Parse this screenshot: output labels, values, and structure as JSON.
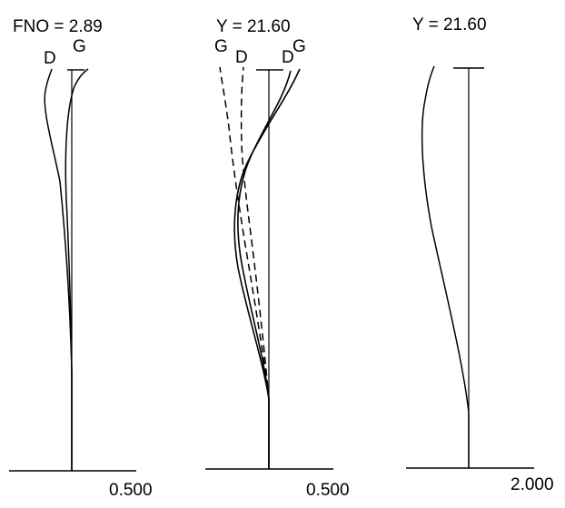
{
  "panels": {
    "spherical": {
      "header": "FNO = 2.89",
      "scale": "0.500",
      "curves": [
        {
          "label": "D",
          "style": "solid"
        },
        {
          "label": "G",
          "style": "solid"
        }
      ]
    },
    "astigmatism": {
      "header": "Y = 21.60",
      "scale": "0.500",
      "curves": [
        {
          "label": "G",
          "style": "dashed"
        },
        {
          "label": "D",
          "style": "dashed"
        },
        {
          "label": "D",
          "style": "solid"
        },
        {
          "label": "G",
          "style": "solid"
        }
      ]
    },
    "distortion": {
      "header": "Y = 21.60",
      "scale": "2.000"
    }
  },
  "colors": {
    "line": "#000000",
    "background": "#ffffff"
  }
}
